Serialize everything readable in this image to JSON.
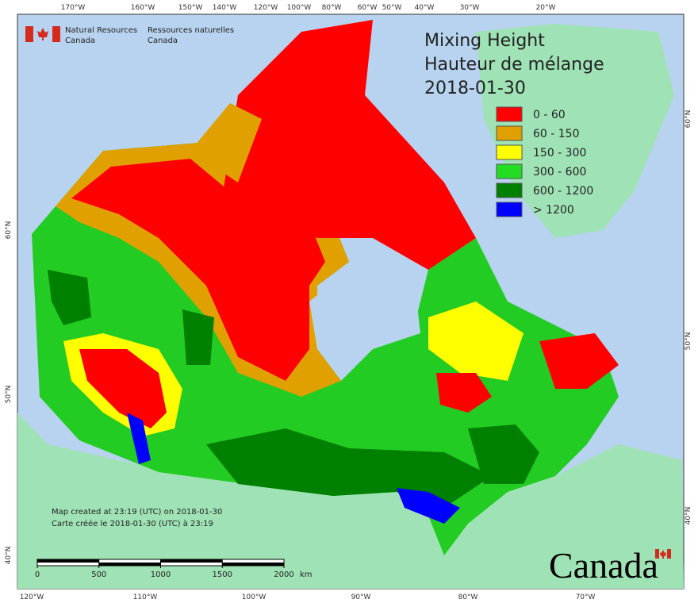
{
  "header": {
    "agency_en": [
      "Natural Resources",
      "Canada"
    ],
    "agency_fr": [
      "Ressources naturelles",
      "Canada"
    ]
  },
  "title": [
    "Mixing Height",
    "Hauteur de mélange",
    "2018-01-30"
  ],
  "legend": [
    {
      "label": "0 - 60",
      "color": "#ff0000"
    },
    {
      "label": "60 - 150",
      "color": "#e0a000"
    },
    {
      "label": "150 - 300",
      "color": "#ffff00"
    },
    {
      "label": "300 - 600",
      "color": "#22dd22"
    },
    {
      "label": "600 - 1200",
      "color": "#008000"
    },
    {
      "label": "> 1200",
      "color": "#0000ff"
    }
  ],
  "graticule": {
    "top": [
      "170°W",
      "160°W",
      "150°W",
      "140°W",
      "120°W",
      "100°W",
      "80°W",
      "60°W",
      "50°W",
      "40°W",
      "30°W",
      "20°W"
    ],
    "bottom": [
      "120°W",
      "110°W",
      "100°W",
      "90°W",
      "80°W",
      "70°W"
    ],
    "left": [
      "60°N",
      "50°N",
      "40°N"
    ],
    "right": [
      "60°N",
      "50°N",
      "40°N"
    ]
  },
  "notes": [
    "Map created at 23:19 (UTC) on 2018-01-30",
    "Carte créée le 2018-01-30 (UTC) à 23:19"
  ],
  "scale": {
    "ticks": [
      0,
      500,
      1000,
      1500,
      2000
    ],
    "unit": "km"
  },
  "wordmark": "Canada"
}
